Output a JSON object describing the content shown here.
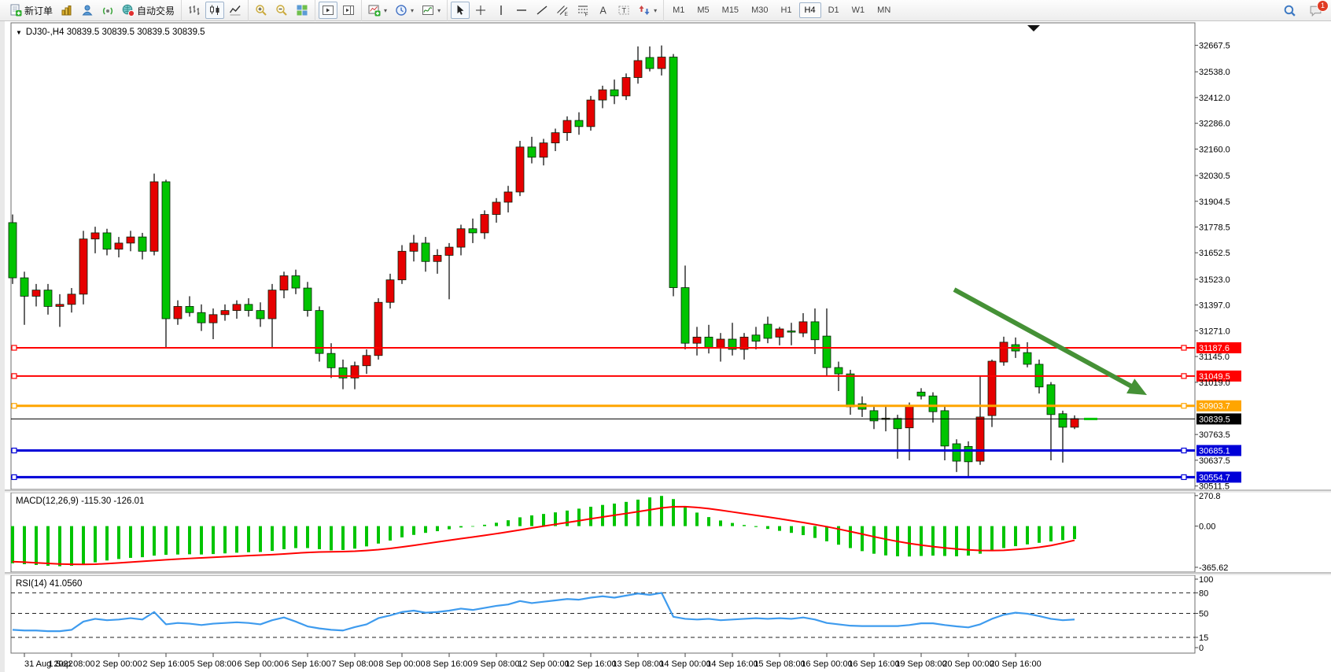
{
  "toolbar": {
    "groups": [
      {
        "buttons": [
          {
            "name": "new-order",
            "icon": "new-order",
            "label": "新订单"
          },
          {
            "name": "market-watch",
            "icon": "market-watch"
          },
          {
            "name": "accounts",
            "icon": "accounts"
          },
          {
            "name": "signals",
            "icon": "signals"
          },
          {
            "name": "autotrading",
            "icon": "autotrading",
            "label": "自动交易"
          }
        ]
      },
      {
        "buttons": [
          {
            "name": "bar-chart",
            "icon": "bar-chart"
          },
          {
            "name": "candlestick-chart",
            "icon": "candles",
            "pressed": true
          },
          {
            "name": "line-chart",
            "icon": "line-chart"
          }
        ]
      },
      {
        "buttons": [
          {
            "name": "zoom-in",
            "icon": "zoom-in"
          },
          {
            "name": "zoom-out",
            "icon": "zoom-out"
          },
          {
            "name": "tile-windows",
            "icon": "tile-windows"
          }
        ]
      },
      {
        "buttons": [
          {
            "name": "auto-scroll",
            "icon": "auto-scroll",
            "pressed": true
          },
          {
            "name": "chart-shift",
            "icon": "chart-shift"
          }
        ]
      },
      {
        "buttons": [
          {
            "name": "indicators-list",
            "icon": "indicators",
            "caret": true
          },
          {
            "name": "periods",
            "icon": "periods",
            "caret": true
          },
          {
            "name": "templates",
            "icon": "templates",
            "caret": true
          }
        ]
      },
      {
        "buttons": [
          {
            "name": "cursor",
            "icon": "cursor",
            "pressed": true
          },
          {
            "name": "crosshair",
            "icon": "crosshair"
          },
          {
            "name": "vertical-line",
            "icon": "vline"
          },
          {
            "name": "horizontal-line",
            "icon": "hline"
          },
          {
            "name": "trendline",
            "icon": "trendline"
          },
          {
            "name": "equidistant-channel",
            "icon": "channel"
          },
          {
            "name": "fibonacci-retracement",
            "icon": "fibo"
          },
          {
            "name": "text",
            "icon": "text-a"
          },
          {
            "name": "text-label",
            "icon": "label-t"
          },
          {
            "name": "arrows",
            "icon": "arrows-tool",
            "caret": true
          }
        ]
      }
    ],
    "timeframes": {
      "items": [
        "M1",
        "M5",
        "M15",
        "M30",
        "H1",
        "H4",
        "D1",
        "W1",
        "MN"
      ],
      "active": "H4"
    },
    "right_buttons": [
      {
        "name": "search",
        "icon": "search"
      },
      {
        "name": "notifications",
        "icon": "chat",
        "badge": "1"
      }
    ]
  },
  "chart": {
    "symbol_line": {
      "marker": "▼",
      "text": "DJ30-,H4  30839.5 30839.5 30839.5 30839.5"
    },
    "price_axis_ticks": [
      "32667.5",
      "32538.0",
      "32412.0",
      "32286.0",
      "32160.0",
      "32030.5",
      "31904.5",
      "31778.5",
      "31652.5",
      "31523.0",
      "31397.0",
      "31271.0",
      "31145.0",
      "31019.0",
      "30763.5",
      "30637.5",
      "30511.5"
    ],
    "levels": [
      {
        "name": "resistance-line-1",
        "price": 31187.6,
        "label": "31187.6",
        "color": "#FF0000",
        "width": 2,
        "object": true
      },
      {
        "name": "resistance-line-2",
        "price": 31049.5,
        "label": "31049.5",
        "color": "#FF0000",
        "width": 2,
        "object": true
      },
      {
        "name": "pivot-line",
        "price": 30903.7,
        "label": "30903.7",
        "color": "#FFA500",
        "width": 3,
        "object": true
      },
      {
        "name": "bid-line",
        "price": 30839.5,
        "label": "30839.5",
        "color": "#000000",
        "width": 1,
        "object": false
      },
      {
        "name": "support-line-1",
        "price": 30685.1,
        "label": "30685.1",
        "color": "#0000D8",
        "width": 3,
        "object": true
      },
      {
        "name": "support-line-2",
        "price": 30554.7,
        "label": "30554.7",
        "color": "#0000D8",
        "width": 3,
        "object": true
      }
    ],
    "trend_arrow": {
      "from": [
        1207,
        368
      ],
      "to": [
        1452,
        502
      ],
      "color": "#459136"
    },
    "bull_color": "#E60000",
    "bear_color": "#00C400"
  },
  "chart_data": {
    "type": "candlestick",
    "symbol": "DJ30-",
    "timeframe": "H4",
    "note": "Chinese color convention: red = up, green = down",
    "bars": [
      [
        31800,
        31840,
        31500,
        31530
      ],
      [
        31530,
        31560,
        31300,
        31440
      ],
      [
        31440,
        31500,
        31390,
        31470
      ],
      [
        31470,
        31500,
        31350,
        31390
      ],
      [
        31390,
        31450,
        31290,
        31400
      ],
      [
        31400,
        31480,
        31360,
        31450
      ],
      [
        31450,
        31760,
        31400,
        31720
      ],
      [
        31720,
        31780,
        31650,
        31750
      ],
      [
        31750,
        31770,
        31640,
        31670
      ],
      [
        31670,
        31730,
        31630,
        31700
      ],
      [
        31700,
        31760,
        31660,
        31730
      ],
      [
        31730,
        31750,
        31620,
        31660
      ],
      [
        31660,
        32040,
        31640,
        32000
      ],
      [
        32000,
        32010,
        31190,
        31330
      ],
      [
        31330,
        31420,
        31300,
        31390
      ],
      [
        31390,
        31440,
        31340,
        31360
      ],
      [
        31360,
        31400,
        31270,
        31310
      ],
      [
        31310,
        31380,
        31230,
        31350
      ],
      [
        31350,
        31400,
        31320,
        31370
      ],
      [
        31370,
        31420,
        31330,
        31400
      ],
      [
        31400,
        31430,
        31340,
        31370
      ],
      [
        31370,
        31410,
        31290,
        31330
      ],
      [
        31330,
        31500,
        31190,
        31470
      ],
      [
        31470,
        31560,
        31430,
        31540
      ],
      [
        31540,
        31570,
        31450,
        31480
      ],
      [
        31480,
        31510,
        31340,
        31370
      ],
      [
        31370,
        31390,
        31120,
        31160
      ],
      [
        31160,
        31210,
        31040,
        31090
      ],
      [
        31090,
        31130,
        30985,
        31040
      ],
      [
        31040,
        31120,
        30985,
        31100
      ],
      [
        31100,
        31180,
        31060,
        31150
      ],
      [
        31150,
        31430,
        31130,
        31410
      ],
      [
        31410,
        31550,
        31380,
        31520
      ],
      [
        31520,
        31690,
        31500,
        31660
      ],
      [
        31660,
        31740,
        31610,
        31700
      ],
      [
        31700,
        31730,
        31560,
        31610
      ],
      [
        31610,
        31670,
        31550,
        31640
      ],
      [
        31640,
        31700,
        31425,
        31680
      ],
      [
        31680,
        31790,
        31640,
        31770
      ],
      [
        31770,
        31820,
        31700,
        31750
      ],
      [
        31750,
        31860,
        31720,
        31840
      ],
      [
        31840,
        31920,
        31800,
        31900
      ],
      [
        31900,
        31980,
        31850,
        31950
      ],
      [
        31950,
        32200,
        31930,
        32170
      ],
      [
        32170,
        32220,
        32090,
        32120
      ],
      [
        32120,
        32210,
        32080,
        32190
      ],
      [
        32190,
        32260,
        32150,
        32240
      ],
      [
        32240,
        32320,
        32200,
        32300
      ],
      [
        32300,
        32340,
        32230,
        32270
      ],
      [
        32270,
        32420,
        32250,
        32400
      ],
      [
        32400,
        32470,
        32360,
        32450
      ],
      [
        32450,
        32500,
        32380,
        32420
      ],
      [
        32420,
        32530,
        32400,
        32510
      ],
      [
        32510,
        32662,
        32480,
        32593
      ],
      [
        32608,
        32662,
        32540,
        32554
      ],
      [
        32554,
        32667,
        32520,
        32610
      ],
      [
        32610,
        32625,
        31440,
        31482
      ],
      [
        31482,
        31590,
        31180,
        31210
      ],
      [
        31210,
        31290,
        31150,
        31240
      ],
      [
        31240,
        31300,
        31160,
        31190
      ],
      [
        31190,
        31260,
        31120,
        31230
      ],
      [
        31230,
        31310,
        31150,
        31180
      ],
      [
        31180,
        31260,
        31130,
        31240
      ],
      [
        31250,
        31290,
        31180,
        31220
      ],
      [
        31303,
        31340,
        31210,
        31234
      ],
      [
        31240,
        31290,
        31200,
        31280
      ],
      [
        31270,
        31310,
        31200,
        31268
      ],
      [
        31260,
        31357,
        31240,
        31315
      ],
      [
        31315,
        31380,
        31157,
        31227
      ],
      [
        31245,
        31380,
        31053,
        31091
      ],
      [
        31091,
        31120,
        30976,
        31060
      ],
      [
        31060,
        31080,
        30860,
        30899
      ],
      [
        30914,
        30950,
        30849,
        30887
      ],
      [
        30880,
        30900,
        30790,
        30830
      ],
      [
        30842,
        30899,
        30779,
        30843
      ],
      [
        30842,
        30860,
        30645,
        30792
      ],
      [
        30796,
        30920,
        30637,
        30903
      ],
      [
        30971,
        30990,
        30935,
        30952
      ],
      [
        30952,
        30970,
        30822,
        30875
      ],
      [
        30880,
        30900,
        30637,
        30707
      ],
      [
        30718,
        30740,
        30580,
        30633
      ],
      [
        30705,
        30730,
        30560,
        30630
      ],
      [
        30633,
        31049,
        30615,
        30849
      ],
      [
        30856,
        31130,
        30800,
        31122
      ],
      [
        31118,
        31242,
        31100,
        31215
      ],
      [
        31203,
        31238,
        31138,
        31172
      ],
      [
        31164,
        31215,
        31092,
        31107
      ],
      [
        31107,
        31130,
        30964,
        30996
      ],
      [
        31007,
        31020,
        30637,
        30861
      ],
      [
        30865,
        30880,
        30626,
        30799
      ],
      [
        30799,
        30857,
        30790,
        30841
      ]
    ]
  },
  "indicators": {
    "macd": {
      "label": "MACD(12,26,9) -115.30 -126.01",
      "axis_ticks": [
        {
          "text": "270.8",
          "value": 270.8
        },
        {
          "text": "0.00",
          "value": 0
        },
        {
          "text": "-365.62",
          "value": -365.62
        }
      ],
      "histogram_color": "#00C400",
      "signal_color": "#FF0000",
      "histogram": [
        -330,
        -338,
        -345,
        -352,
        -356,
        -352,
        -340,
        -322,
        -305,
        -292,
        -282,
        -276,
        -262,
        -255,
        -252,
        -250,
        -252,
        -248,
        -242,
        -236,
        -232,
        -230,
        -220,
        -205,
        -195,
        -195,
        -205,
        -215,
        -212,
        -200,
        -180,
        -155,
        -128,
        -100,
        -78,
        -60,
        -45,
        -28,
        -12,
        -5,
        12,
        30,
        52,
        78,
        95,
        108,
        122,
        138,
        155,
        172,
        188,
        200,
        215,
        235,
        255,
        268,
        240,
        175,
        120,
        80,
        50,
        28,
        10,
        -8,
        -25,
        -42,
        -60,
        -80,
        -105,
        -135,
        -165,
        -195,
        -222,
        -245,
        -260,
        -268,
        -270,
        -265,
        -262,
        -265,
        -268,
        -262,
        -245,
        -220,
        -195,
        -178,
        -162,
        -148,
        -136,
        -125,
        -115.3
      ],
      "signal": [
        -315,
        -320,
        -326,
        -331,
        -336,
        -339,
        -340,
        -338,
        -333,
        -327,
        -320,
        -313,
        -306,
        -299,
        -293,
        -287,
        -282,
        -277,
        -272,
        -267,
        -262,
        -258,
        -253,
        -247,
        -240,
        -234,
        -230,
        -228,
        -226,
        -223,
        -217,
        -209,
        -198,
        -185,
        -171,
        -156,
        -141,
        -126,
        -111,
        -97,
        -82,
        -67,
        -51,
        -34,
        -17,
        0,
        16,
        32,
        48,
        65,
        81,
        97,
        112,
        128,
        145,
        161,
        172,
        173,
        166,
        155,
        141,
        126,
        111,
        96,
        81,
        65,
        49,
        32,
        14,
        -5,
        -26,
        -48,
        -71,
        -94,
        -116,
        -136,
        -154,
        -169,
        -182,
        -193,
        -203,
        -211,
        -216,
        -217,
        -215,
        -208,
        -200,
        -188,
        -172,
        -150,
        -126.01
      ]
    },
    "rsi": {
      "label": "RSI(14) 41.0560",
      "line_color": "#3E9BEE",
      "axis_ticks": [
        {
          "text": "100",
          "value": 100
        },
        {
          "text": "80",
          "value": 80
        },
        {
          "text": "50",
          "value": 50
        },
        {
          "text": "15",
          "value": 15
        },
        {
          "text": "0",
          "value": 0
        }
      ],
      "dashed_levels": [
        80,
        50,
        15
      ],
      "values": [
        26,
        25,
        25,
        24,
        24,
        26,
        38,
        42,
        40,
        41,
        43,
        41,
        52,
        34,
        36,
        35,
        33,
        35,
        36,
        37,
        36,
        34,
        40,
        44,
        38,
        31,
        28,
        26,
        25,
        30,
        34,
        43,
        47,
        52,
        54,
        51,
        52,
        54,
        57,
        55,
        58,
        61,
        63,
        68,
        65,
        67,
        69,
        71,
        70,
        73,
        75,
        73,
        76,
        79,
        77,
        80,
        45,
        42,
        41,
        42,
        40,
        41,
        42,
        43,
        42,
        43,
        42,
        44,
        41,
        36,
        34,
        32,
        31.5,
        31.5,
        31.5,
        31.5,
        33,
        35.5,
        35.5,
        33,
        31,
        29.5,
        34,
        42,
        48,
        51,
        49.5,
        46,
        42,
        40,
        41.06
      ]
    }
  },
  "time_axis": {
    "labels": [
      "31 Aug 2022",
      "1 Sep 08:00",
      "2 Sep 00:00",
      "2 Sep 16:00",
      "5 Sep 08:00",
      "6 Sep 00:00",
      "6 Sep 16:00",
      "7 Sep 08:00",
      "8 Sep 00:00",
      "8 Sep 16:00",
      "9 Sep 08:00",
      "12 Sep 00:00",
      "12 Sep 16:00",
      "13 Sep 08:00",
      "14 Sep 00:00",
      "14 Sep 16:00",
      "15 Sep 08:00",
      "16 Sep 00:00",
      "16 Sep 16:00",
      "19 Sep 08:00",
      "20 Sep 00:00",
      "20 Sep 16:00"
    ]
  }
}
